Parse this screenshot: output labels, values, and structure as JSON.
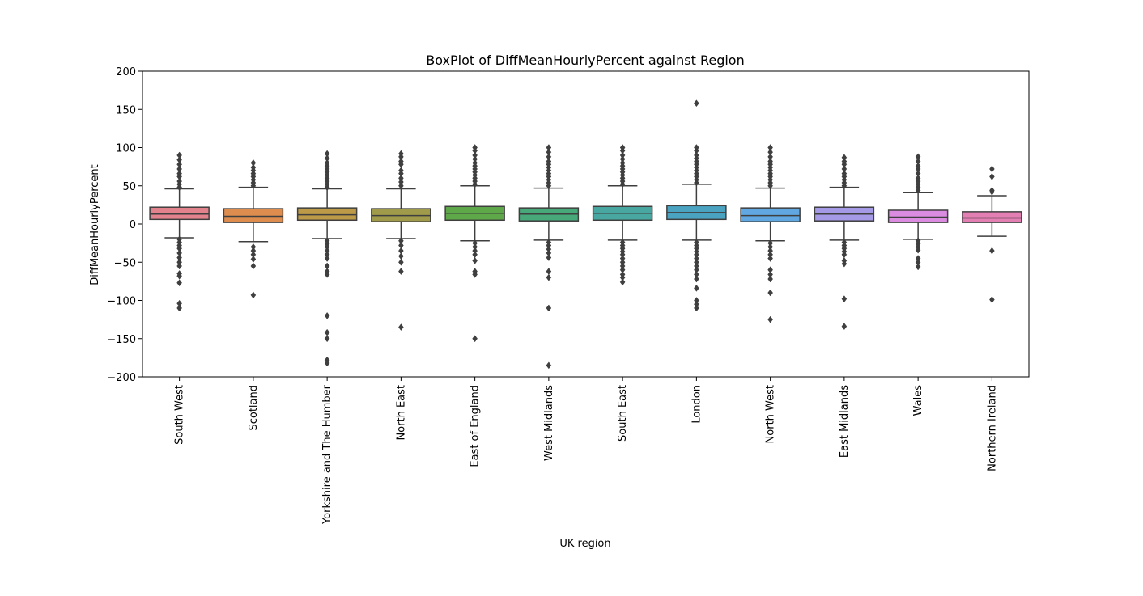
{
  "chart_data": {
    "type": "boxplot",
    "title": "BoxPlot of DiffMeanHourlyPercent against Region",
    "xlabel": "UK region",
    "ylabel": "DiffMeanHourlyPercent",
    "ylim": [
      -200,
      200
    ],
    "yticks": [
      -200,
      -150,
      -100,
      -50,
      0,
      50,
      100,
      150,
      200
    ],
    "grid": false,
    "legend": "none",
    "categories": [
      "South West",
      "Scotland",
      "Yorkshire and The Humber",
      "North East",
      "East of England",
      "West Midlands",
      "South East",
      "London",
      "North West",
      "East Midlands",
      "Wales",
      "Northern Ireland"
    ],
    "colors": [
      "#e1828c",
      "#df8d4f",
      "#bd9a48",
      "#a09b4a",
      "#5fa84a",
      "#47a97a",
      "#48a8a1",
      "#4aa3c0",
      "#61a8e3",
      "#a59ae6",
      "#db8be0",
      "#e47fb3"
    ],
    "boxes": [
      {
        "whisker_low": -18,
        "q1": 6,
        "median": 13,
        "q3": 22,
        "whisker_high": 46,
        "outliers": [
          48,
          52,
          56,
          62,
          66,
          72,
          78,
          84,
          90,
          -20,
          -24,
          -28,
          -32,
          -38,
          -44,
          -50,
          -55,
          -65,
          -68,
          -77,
          -104,
          -110
        ]
      },
      {
        "whisker_low": -23,
        "q1": 2,
        "median": 10,
        "q3": 20,
        "whisker_high": 48,
        "outliers": [
          50,
          54,
          58,
          62,
          66,
          70,
          74,
          80,
          -30,
          -35,
          -40,
          -46,
          -55,
          -93
        ]
      },
      {
        "whisker_low": -19,
        "q1": 5,
        "median": 12,
        "q3": 21,
        "whisker_high": 46,
        "outliers": [
          48,
          52,
          56,
          60,
          64,
          68,
          72,
          76,
          80,
          86,
          92,
          -22,
          -26,
          -30,
          -35,
          -40,
          -45,
          -55,
          -62,
          -66,
          -120,
          -142,
          -150,
          -178,
          -182
        ]
      },
      {
        "whisker_low": -19,
        "q1": 3,
        "median": 11,
        "q3": 20,
        "whisker_high": 46,
        "outliers": [
          50,
          55,
          60,
          66,
          70,
          78,
          82,
          88,
          92,
          -22,
          -28,
          -35,
          -42,
          -50,
          -62,
          -135
        ]
      },
      {
        "whisker_low": -22,
        "q1": 5,
        "median": 14,
        "q3": 23,
        "whisker_high": 50,
        "outliers": [
          52,
          56,
          60,
          64,
          68,
          72,
          76,
          80,
          85,
          90,
          96,
          100,
          -25,
          -30,
          -35,
          -40,
          -48,
          -62,
          -66,
          -150
        ]
      },
      {
        "whisker_low": -21,
        "q1": 4,
        "median": 13,
        "q3": 21,
        "whisker_high": 47,
        "outliers": [
          50,
          54,
          58,
          62,
          66,
          70,
          74,
          78,
          82,
          88,
          94,
          100,
          -24,
          -28,
          -33,
          -38,
          -44,
          -62,
          -70,
          -110,
          -185
        ]
      },
      {
        "whisker_low": -21,
        "q1": 5,
        "median": 14,
        "q3": 23,
        "whisker_high": 50,
        "outliers": [
          52,
          56,
          60,
          64,
          68,
          72,
          76,
          80,
          85,
          90,
          96,
          100,
          -24,
          -28,
          -32,
          -36,
          -40,
          -45,
          -50,
          -55,
          -60,
          -66,
          -70,
          -76
        ]
      },
      {
        "whisker_low": -21,
        "q1": 6,
        "median": 15,
        "q3": 24,
        "whisker_high": 52,
        "outliers": [
          54,
          58,
          62,
          66,
          70,
          74,
          78,
          82,
          86,
          90,
          96,
          100,
          158,
          -24,
          -28,
          -32,
          -36,
          -40,
          -45,
          -50,
          -55,
          -60,
          -66,
          -72,
          -84,
          -100,
          -105,
          -110
        ]
      },
      {
        "whisker_low": -22,
        "q1": 3,
        "median": 11,
        "q3": 21,
        "whisker_high": 47,
        "outliers": [
          50,
          54,
          58,
          62,
          66,
          70,
          74,
          78,
          82,
          88,
          94,
          100,
          -25,
          -30,
          -35,
          -40,
          -45,
          -60,
          -66,
          -72,
          -90,
          -125
        ]
      },
      {
        "whisker_low": -21,
        "q1": 4,
        "median": 13,
        "q3": 22,
        "whisker_high": 48,
        "outliers": [
          50,
          54,
          58,
          62,
          66,
          72,
          78,
          82,
          87,
          -24,
          -28,
          -32,
          -36,
          -40,
          -48,
          -52,
          -98,
          -134
        ]
      },
      {
        "whisker_low": -20,
        "q1": 2,
        "median": 9,
        "q3": 18,
        "whisker_high": 41,
        "outliers": [
          44,
          48,
          52,
          56,
          60,
          66,
          72,
          76,
          82,
          88,
          -22,
          -26,
          -30,
          -34,
          -45,
          -50,
          -56
        ]
      },
      {
        "whisker_low": -16,
        "q1": 2,
        "median": 8,
        "q3": 16,
        "whisker_high": 37,
        "outliers": [
          42,
          44,
          62,
          72,
          -35,
          -99
        ]
      }
    ]
  }
}
